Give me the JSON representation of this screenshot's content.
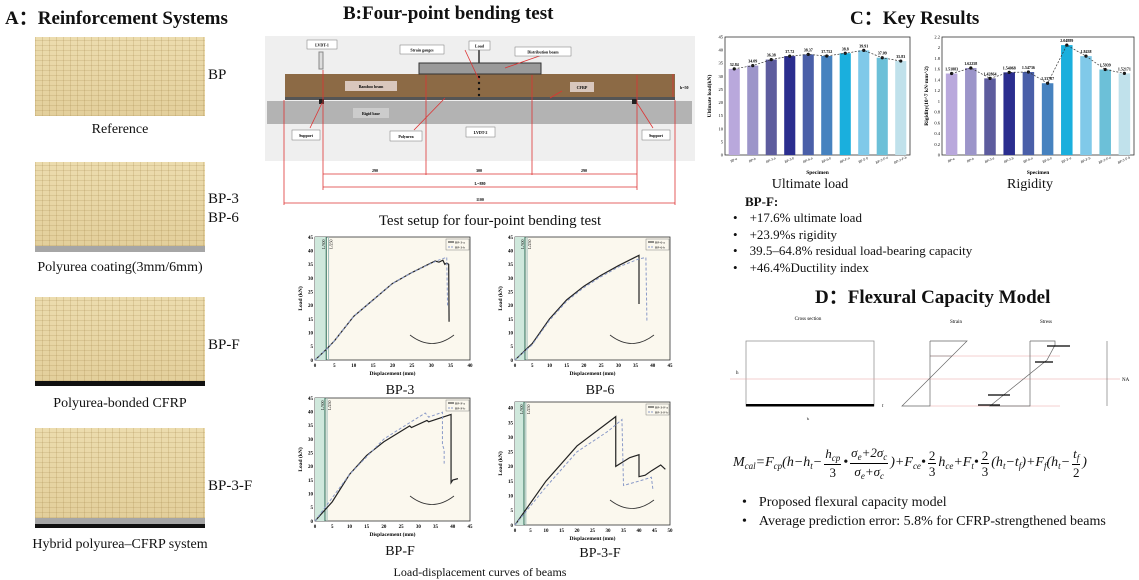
{
  "panelA": {
    "title": "A：Reinforcement Systems",
    "items": [
      {
        "label": "BP",
        "caption": "Reference",
        "layer": "none"
      },
      {
        "label": "BP-3",
        "label2": "BP-6",
        "caption": "Polyurea coating(3mm/6mm)",
        "layer": "polyurea"
      },
      {
        "label": "BP-F",
        "caption": "Polyurea-bonded CFRP",
        "layer": "cfrp"
      },
      {
        "label": "BP-3-F",
        "caption": "Hybrid polyurea–CFRP system",
        "layer": "hybrid"
      }
    ]
  },
  "panelB": {
    "title": "B:Four-point bending test",
    "setup": {
      "labels": {
        "lvdt1": "LVDT-1",
        "strain": "Strain gauges",
        "load": "Load",
        "dist": "Distribution beam",
        "bamboo": "Bamboo beam",
        "cfrp": "CFRP",
        "height": "h=50",
        "rigid": "Rigid base",
        "support": "Support",
        "polyurea": "Polyurea",
        "lvdt2": "LVDT-2"
      },
      "dims": {
        "left": "290",
        "mid": "300",
        "right": "290",
        "span": "L=880",
        "total": "1100"
      },
      "caption": "Test setup for four-point bending test"
    },
    "curves_caption": "Load-displacement curves of beams"
  },
  "panelC": {
    "title": "C：Key Results",
    "chart1_caption": "Ultimate load",
    "chart2_caption": "Rigidity",
    "summary_title": "BP-F:",
    "summary": [
      "+17.6% ultimate load",
      "+23.9%s rigidity",
      "39.5–64.8% residual load-bearing capacity",
      "+46.4%Ductility index"
    ]
  },
  "panelD": {
    "title": "D：Flexural Capacity Model",
    "labels": {
      "cross": "Cross section",
      "strain": "Strain",
      "stress": "Stress",
      "h": "h",
      "b": "b",
      "tf": "t",
      "NA": "NA"
    },
    "bullets": [
      "Proposed flexural capacity model",
      "Average prediction error: 5.8% for CFRP-strengthened beams"
    ]
  },
  "chart_data": [
    {
      "type": "bar",
      "title": "",
      "xlabel": "Specimen",
      "ylabel": "Ultimate load(kN)",
      "ylim": [
        0,
        45
      ],
      "yticks": [
        0,
        5,
        10,
        15,
        20,
        25,
        30,
        35,
        40,
        45
      ],
      "categories": [
        "BP-a",
        "BP-b",
        "BP-3-a",
        "BP-3-b",
        "BP-6-a",
        "BP-6-b",
        "BP-F-a",
        "BP-F-b",
        "BP-3-F-a",
        "BP-3-F-b"
      ],
      "values": [
        32.84,
        34.09,
        36.38,
        37.72,
        38.37,
        37.752,
        38.8,
        39.91,
        37.09,
        35.83
      ],
      "labels": [
        "32.84",
        "34.09",
        "36.38",
        "37.72",
        "38.37",
        "37.752",
        "38.8",
        "39.91",
        "37.09",
        "35.83"
      ],
      "colors": [
        "#b9a8dc",
        "#9c95c9",
        "#5d5c9e",
        "#2b2e8f",
        "#4a5fa8",
        "#4682bf",
        "#1aafdd",
        "#80c9e9",
        "#6cc0d8",
        "#c0e1eb"
      ]
    },
    {
      "type": "bar",
      "title": "",
      "xlabel": "Specimen",
      "ylabel": "Rigidity(10^7 kN·mm^2)",
      "ylim": [
        0,
        2.2
      ],
      "yticks": [
        0,
        0.2,
        0.4,
        0.6,
        0.8,
        1.0,
        1.2,
        1.4,
        1.6,
        1.8,
        2.0,
        2.2
      ],
      "categories": [
        "BP-a",
        "BP-b",
        "BP-3-a",
        "BP-3-b",
        "BP-6-a",
        "BP-6-b",
        "BP-F-a",
        "BP-F-b",
        "BP-3-F-a",
        "BP-3-F-b"
      ],
      "values": [
        1.51883,
        1.62258,
        1.42864,
        1.54068,
        1.54736,
        1.33787,
        2.04889,
        1.8438,
        1.5939,
        1.52171
      ],
      "labels": [
        "1.51883",
        "1.62258",
        "1.42864",
        "1.54068",
        "1.54736",
        "1.33787",
        "2.04889",
        "1.8438",
        "1.5939",
        "1.52171"
      ],
      "colors": [
        "#b9a8dc",
        "#9c95c9",
        "#5d5c9e",
        "#2b2e8f",
        "#4a5fa8",
        "#4682bf",
        "#1aafdd",
        "#80c9e9",
        "#6cc0d8",
        "#c0e1eb"
      ]
    },
    {
      "type": "line",
      "title": "BP-3",
      "xlabel": "Displacement (mm)",
      "ylabel": "Load (kN)",
      "xlim": [
        0,
        40
      ],
      "ylim": [
        0,
        45
      ],
      "xticks": [
        0,
        5,
        10,
        15,
        20,
        25,
        30,
        35,
        40
      ],
      "yticks": [
        0,
        5,
        10,
        15,
        20,
        25,
        30,
        35,
        40,
        45
      ],
      "limits": [
        "L/300",
        "L/250"
      ],
      "series": [
        {
          "name": "BP-3-a",
          "points": [
            [
              0,
              0
            ],
            [
              3,
              4
            ],
            [
              5,
              7
            ],
            [
              10,
              16
            ],
            [
              15,
              22
            ],
            [
              20,
              28
            ],
            [
              25,
              32
            ],
            [
              30,
              35.5
            ],
            [
              31,
              36.2
            ],
            [
              32,
              35.8
            ],
            [
              33,
              36.5
            ],
            [
              33.5,
              35
            ],
            [
              34,
              35.5
            ],
            [
              34.5,
              35
            ],
            [
              34.6,
              14
            ]
          ]
        },
        {
          "name": "BP-3-b",
          "points": [
            [
              0,
              0
            ],
            [
              3,
              4
            ],
            [
              5,
              7
            ],
            [
              10,
              16
            ],
            [
              15,
              22
            ],
            [
              20,
              28
            ],
            [
              25,
              32
            ],
            [
              30,
              35.4
            ],
            [
              32,
              36.6
            ],
            [
              34,
              37.6
            ],
            [
              34.2,
              20
            ]
          ]
        }
      ]
    },
    {
      "type": "line",
      "title": "BP-6",
      "xlabel": "Displacement (mm)",
      "ylabel": "Load (kN)",
      "xlim": [
        0,
        45
      ],
      "ylim": [
        0,
        45
      ],
      "xticks": [
        0,
        5,
        10,
        15,
        20,
        25,
        30,
        35,
        40,
        45
      ],
      "yticks": [
        0,
        5,
        10,
        15,
        20,
        25,
        30,
        35,
        40,
        45
      ],
      "limits": [
        "L/300",
        "L/250"
      ],
      "series": [
        {
          "name": "BP-6-a",
          "points": [
            [
              0,
              0
            ],
            [
              5,
              6
            ],
            [
              10,
              15
            ],
            [
              15,
              22
            ],
            [
              20,
              27
            ],
            [
              25,
              31
            ],
            [
              30,
              34.5
            ],
            [
              36,
              38.3
            ],
            [
              36,
              20.5
            ]
          ]
        },
        {
          "name": "BP-6-b",
          "points": [
            [
              0,
              0
            ],
            [
              5,
              5.6
            ],
            [
              10,
              14.5
            ],
            [
              15,
              21.5
            ],
            [
              20,
              26.5
            ],
            [
              25,
              30.5
            ],
            [
              30,
              34
            ],
            [
              36,
              37
            ],
            [
              38,
              37.5
            ],
            [
              38.3,
              14
            ]
          ]
        }
      ]
    },
    {
      "type": "line",
      "title": "BP-F",
      "xlabel": "Displacement (mm)",
      "ylabel": "Load (kN)",
      "xlim": [
        0,
        45
      ],
      "ylim": [
        0,
        45
      ],
      "xticks": [
        0,
        5,
        10,
        15,
        20,
        25,
        30,
        35,
        40,
        45
      ],
      "yticks": [
        0,
        5,
        10,
        15,
        20,
        25,
        30,
        35,
        40,
        45
      ],
      "limits": [
        "L/300",
        "L/250"
      ],
      "series": [
        {
          "name": "BP-F-a",
          "points": [
            [
              0,
              0
            ],
            [
              5,
              7
            ],
            [
              10,
              17
            ],
            [
              15,
              24
            ],
            [
              20,
              29
            ],
            [
              27.5,
              34.8
            ],
            [
              28,
              34.2
            ],
            [
              32.5,
              36.8
            ],
            [
              33,
              36.3
            ],
            [
              39.5,
              39
            ],
            [
              39.5,
              14
            ],
            [
              40,
              15
            ],
            [
              41.5,
              15.5
            ]
          ]
        },
        {
          "name": "BP-F-b",
          "points": [
            [
              0,
              0
            ],
            [
              10,
              17
            ],
            [
              20,
              30
            ],
            [
              25,
              34
            ],
            [
              32,
              39.5
            ],
            [
              33,
              38
            ],
            [
              37,
              39.8
            ],
            [
              37,
              28
            ],
            [
              37.5,
              26
            ],
            [
              37.5,
              21
            ]
          ]
        }
      ]
    },
    {
      "type": "line",
      "title": "BP-3-F",
      "xlabel": "Displacement (mm)",
      "ylabel": "Load (kN)",
      "xlim": [
        0,
        50
      ],
      "ylim": [
        0,
        42
      ],
      "xticks": [
        0,
        5,
        10,
        15,
        20,
        25,
        30,
        35,
        40,
        45,
        50
      ],
      "yticks": [
        0,
        5,
        10,
        15,
        20,
        25,
        30,
        35,
        40
      ],
      "limits": [
        "L/300",
        "L/250"
      ],
      "series": [
        {
          "name": "BP-3-F-a",
          "points": [
            [
              0,
              0
            ],
            [
              10,
              15
            ],
            [
              20,
              27
            ],
            [
              30,
              35
            ],
            [
              32.5,
              37
            ],
            [
              32.5,
              20
            ],
            [
              37,
              23
            ],
            [
              40,
              24
            ],
            [
              40,
              16.5
            ],
            [
              42,
              17
            ],
            [
              44,
              18.5
            ],
            [
              47,
              20.5
            ],
            [
              48.5,
              19
            ]
          ]
        },
        {
          "name": "BP-3-F-b",
          "points": [
            [
              0,
              0
            ],
            [
              10,
              13
            ],
            [
              20,
              25
            ],
            [
              30,
              32
            ],
            [
              34.5,
              36
            ],
            [
              35,
              13.5
            ],
            [
              40,
              15
            ],
            [
              44,
              16.3
            ],
            [
              44.5,
              12
            ]
          ]
        }
      ]
    }
  ]
}
